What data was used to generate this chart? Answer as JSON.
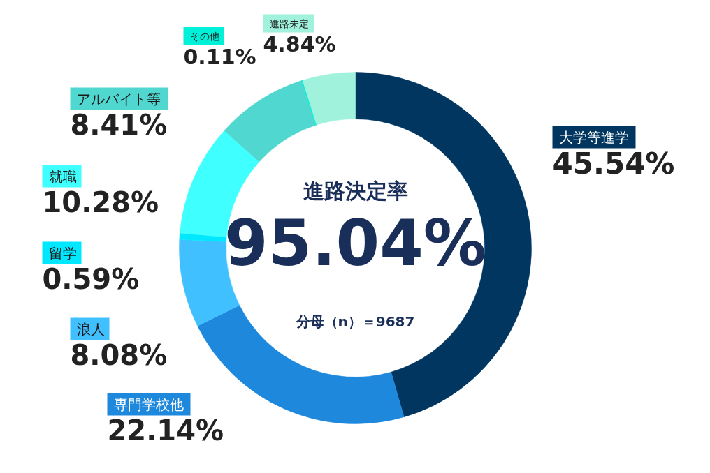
{
  "chart_data": {
    "type": "donut",
    "title": "進路決定率",
    "categories": [
      "大学等進学",
      "専門学校他",
      "浪人",
      "留学",
      "就職",
      "アルバイト等",
      "その他",
      "進路未定"
    ],
    "values": [
      45.54,
      22.14,
      8.08,
      0.59,
      10.28,
      8.41,
      0.11,
      4.84
    ],
    "colors": [
      "#003660",
      "#1e88dc",
      "#40c0ff",
      "#00e8ff",
      "#40ffff",
      "#50d8d0",
      "#00f0d8",
      "#a0f2dc"
    ],
    "value_labels": [
      "45.54%",
      "22.14%",
      "8.08%",
      "0.59%",
      "10.28%",
      "8.41%",
      "0.11%",
      "4.84%"
    ],
    "annotations": [
      "95.04%",
      "分母（n）＝9687"
    ],
    "legend": "left"
  }
}
